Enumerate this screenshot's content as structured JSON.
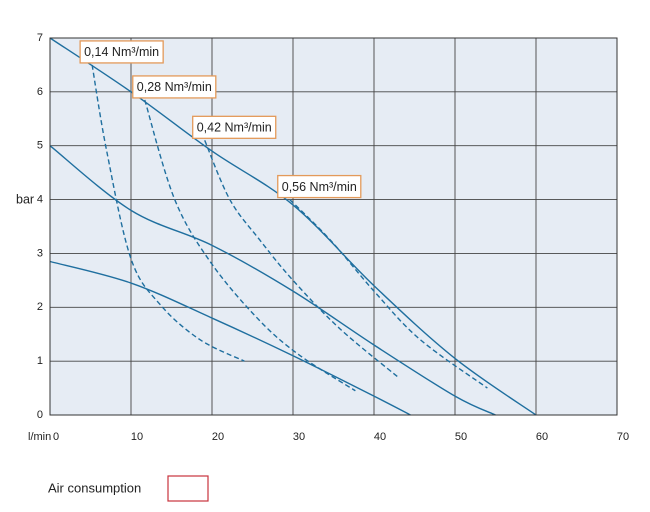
{
  "chart_data": {
    "type": "line",
    "xlabel": "l/min",
    "ylabel": "bar",
    "xlim": [
      0,
      70
    ],
    "ylim": [
      0,
      7
    ],
    "xticks": [
      0,
      10,
      20,
      30,
      40,
      50,
      60,
      70
    ],
    "yticks": [
      0,
      1,
      2,
      3,
      4,
      5,
      6,
      7
    ],
    "grid": true,
    "legend_label": "Air consumption",
    "series": [
      {
        "color": "#1f6f9f",
        "dashed": false,
        "x": [
          0,
          10,
          20,
          30,
          40,
          50,
          60
        ],
        "values": [
          7,
          6,
          4.9,
          3.9,
          2.4,
          1.05,
          0
        ]
      },
      {
        "color": "#1f6f9f",
        "dashed": false,
        "x": [
          0,
          10,
          20,
          30,
          40,
          50,
          55
        ],
        "values": [
          5,
          3.8,
          3.15,
          2.3,
          1.3,
          0.35,
          0
        ]
      },
      {
        "color": "#1f6f9f",
        "dashed": false,
        "x": [
          0,
          10,
          20,
          30,
          40,
          44.5
        ],
        "values": [
          2.85,
          2.45,
          1.8,
          1.1,
          0.35,
          0
        ]
      },
      {
        "name": "0,14 Nm³/min",
        "color": "#1f6f9f",
        "dashed": true,
        "x": [
          5.2,
          7,
          10,
          13.6,
          18.5,
          24
        ],
        "values": [
          6.5,
          4.9,
          2.9,
          2.05,
          1.4,
          1.0
        ]
      },
      {
        "name": "0,28 Nm³/min",
        "color": "#1f6f9f",
        "dashed": true,
        "x": [
          11.7,
          15.4,
          20,
          25.9,
          30.9,
          37.7
        ],
        "values": [
          5.85,
          4.0,
          2.8,
          1.75,
          1.1,
          0.45
        ]
      },
      {
        "name": "0,42 Nm³/min",
        "color": "#1f6f9f",
        "dashed": true,
        "x": [
          19.1,
          22.2,
          25.9,
          30,
          35.8,
          43
        ],
        "values": [
          5.1,
          4.0,
          3.25,
          2.5,
          1.6,
          0.7
        ]
      },
      {
        "name": "0,56 Nm³/min",
        "color": "#1f6f9f",
        "dashed": true,
        "x": [
          29.6,
          34.6,
          40,
          45.7,
          54
        ],
        "values": [
          4.0,
          3.25,
          2.3,
          1.4,
          0.5
        ]
      }
    ]
  }
}
